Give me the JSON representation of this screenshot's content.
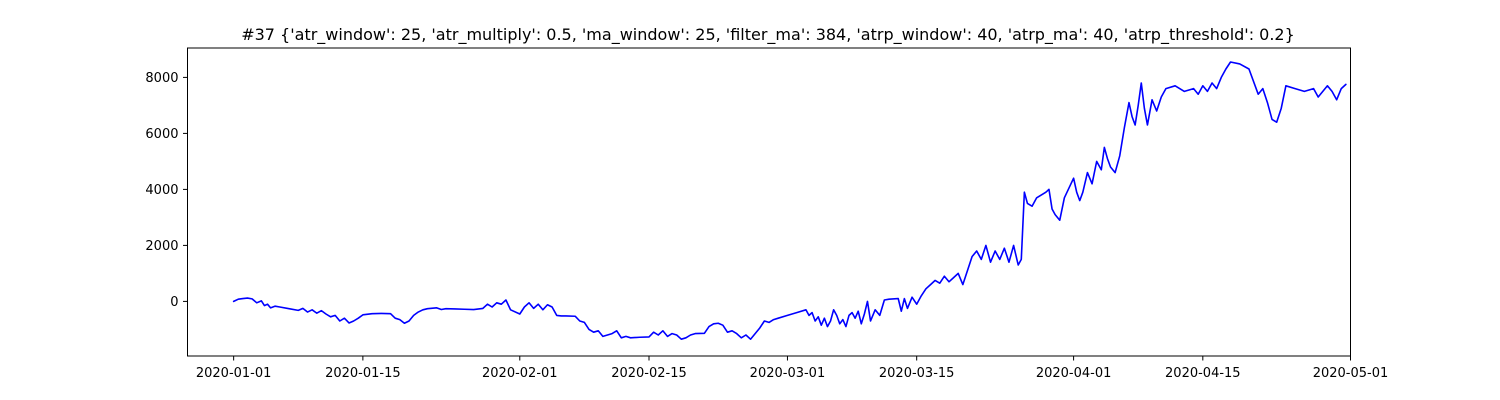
{
  "chart_data": {
    "type": "line",
    "title": "#37 {'atr_window': 25, 'atr_multiply': 0.5, 'ma_window': 25, 'filter_ma': 384, 'atrp_window': 40, 'atrp_ma': 40, 'atrp_threshold': 0.2}",
    "xlabel": "",
    "ylabel": "",
    "x_axis": {
      "type": "date",
      "range": [
        "2019-12-27",
        "2020-05-01"
      ],
      "ticks": [
        {
          "value": "2020-01-01",
          "label": "2020-01-01"
        },
        {
          "value": "2020-01-15",
          "label": "2020-01-15"
        },
        {
          "value": "2020-02-01",
          "label": "2020-02-01"
        },
        {
          "value": "2020-02-15",
          "label": "2020-02-15"
        },
        {
          "value": "2020-03-01",
          "label": "2020-03-01"
        },
        {
          "value": "2020-03-15",
          "label": "2020-03-15"
        },
        {
          "value": "2020-04-01",
          "label": "2020-04-01"
        },
        {
          "value": "2020-04-15",
          "label": "2020-04-15"
        },
        {
          "value": "2020-05-01",
          "label": "2020-05-01"
        }
      ]
    },
    "y_axis": {
      "range": [
        -1950,
        9050
      ],
      "ticks": [
        0,
        2000,
        4000,
        6000,
        8000
      ],
      "tick_labels": [
        "0",
        "2000",
        "4000",
        "6000",
        "8000"
      ]
    },
    "grid": false,
    "legend": "none",
    "series": [
      {
        "color": "#0000ff",
        "points": [
          [
            "2020-01-01",
            0
          ],
          [
            "2020-01-01 12:00",
            80
          ],
          [
            "2020-01-02",
            100
          ],
          [
            "2020-01-02 12:00",
            120
          ],
          [
            "2020-01-03",
            90
          ],
          [
            "2020-01-03 12:00",
            -50
          ],
          [
            "2020-01-04",
            20
          ],
          [
            "2020-01-04 08:00",
            -150
          ],
          [
            "2020-01-04 16:00",
            -100
          ],
          [
            "2020-01-05",
            -230
          ],
          [
            "2020-01-05 12:00",
            -170
          ],
          [
            "2020-01-06",
            -200
          ],
          [
            "2020-01-07",
            -260
          ],
          [
            "2020-01-08",
            -320
          ],
          [
            "2020-01-08 12:00",
            -250
          ],
          [
            "2020-01-09",
            -380
          ],
          [
            "2020-01-09 12:00",
            -300
          ],
          [
            "2020-01-10",
            -420
          ],
          [
            "2020-01-10 12:00",
            -330
          ],
          [
            "2020-01-11",
            -450
          ],
          [
            "2020-01-11 12:00",
            -550
          ],
          [
            "2020-01-12",
            -500
          ],
          [
            "2020-01-12 12:00",
            -700
          ],
          [
            "2020-01-13",
            -600
          ],
          [
            "2020-01-13 12:00",
            -770
          ],
          [
            "2020-01-14",
            -700
          ],
          [
            "2020-01-14 12:00",
            -600
          ],
          [
            "2020-01-15",
            -480
          ],
          [
            "2020-01-16",
            -440
          ],
          [
            "2020-01-17",
            -430
          ],
          [
            "2020-01-18",
            -440
          ],
          [
            "2020-01-18 12:00",
            -600
          ],
          [
            "2020-01-19",
            -650
          ],
          [
            "2020-01-19 12:00",
            -780
          ],
          [
            "2020-01-20",
            -700
          ],
          [
            "2020-01-20 12:00",
            -500
          ],
          [
            "2020-01-21",
            -380
          ],
          [
            "2020-01-21 12:00",
            -300
          ],
          [
            "2020-01-22",
            -260
          ],
          [
            "2020-01-23",
            -230
          ],
          [
            "2020-01-23 12:00",
            -290
          ],
          [
            "2020-01-24",
            -260
          ],
          [
            "2020-01-25",
            -270
          ],
          [
            "2020-01-26",
            -280
          ],
          [
            "2020-01-27",
            -290
          ],
          [
            "2020-01-28",
            -250
          ],
          [
            "2020-01-28 12:00",
            -100
          ],
          [
            "2020-01-29",
            -200
          ],
          [
            "2020-01-29 12:00",
            -50
          ],
          [
            "2020-01-30",
            -100
          ],
          [
            "2020-01-30 12:00",
            50
          ],
          [
            "2020-01-31",
            -300
          ],
          [
            "2020-02-01",
            -450
          ],
          [
            "2020-02-01 12:00",
            -200
          ],
          [
            "2020-02-02",
            -50
          ],
          [
            "2020-02-02 12:00",
            -250
          ],
          [
            "2020-02-03",
            -100
          ],
          [
            "2020-02-03 12:00",
            -300
          ],
          [
            "2020-02-04",
            -120
          ],
          [
            "2020-02-04 12:00",
            -200
          ],
          [
            "2020-02-05",
            -500
          ],
          [
            "2020-02-05 12:00",
            -520
          ],
          [
            "2020-02-06",
            -520
          ],
          [
            "2020-02-07",
            -530
          ],
          [
            "2020-02-07 12:00",
            -700
          ],
          [
            "2020-02-08",
            -750
          ],
          [
            "2020-02-08 12:00",
            -1000
          ],
          [
            "2020-02-09",
            -1100
          ],
          [
            "2020-02-09 12:00",
            -1050
          ],
          [
            "2020-02-10",
            -1250
          ],
          [
            "2020-02-10 12:00",
            -1200
          ],
          [
            "2020-02-11",
            -1150
          ],
          [
            "2020-02-11 12:00",
            -1050
          ],
          [
            "2020-02-12",
            -1300
          ],
          [
            "2020-02-12 12:00",
            -1250
          ],
          [
            "2020-02-13",
            -1300
          ],
          [
            "2020-02-14",
            -1280
          ],
          [
            "2020-02-15",
            -1270
          ],
          [
            "2020-02-15 12:00",
            -1100
          ],
          [
            "2020-02-16",
            -1200
          ],
          [
            "2020-02-16 12:00",
            -1050
          ],
          [
            "2020-02-17",
            -1250
          ],
          [
            "2020-02-17 12:00",
            -1150
          ],
          [
            "2020-02-18",
            -1200
          ],
          [
            "2020-02-18 12:00",
            -1350
          ],
          [
            "2020-02-19",
            -1300
          ],
          [
            "2020-02-19 12:00",
            -1200
          ],
          [
            "2020-02-20",
            -1150
          ],
          [
            "2020-02-21",
            -1140
          ],
          [
            "2020-02-21 12:00",
            -900
          ],
          [
            "2020-02-22",
            -800
          ],
          [
            "2020-02-22 12:00",
            -780
          ],
          [
            "2020-02-23",
            -850
          ],
          [
            "2020-02-23 12:00",
            -1100
          ],
          [
            "2020-02-24",
            -1050
          ],
          [
            "2020-02-24 12:00",
            -1150
          ],
          [
            "2020-02-25",
            -1300
          ],
          [
            "2020-02-25 12:00",
            -1200
          ],
          [
            "2020-02-26",
            -1350
          ],
          [
            "2020-02-26 12:00",
            -1150
          ],
          [
            "2020-02-27",
            -950
          ],
          [
            "2020-02-27 12:00",
            -700
          ],
          [
            "2020-02-28",
            -750
          ],
          [
            "2020-02-28 12:00",
            -650
          ],
          [
            "2020-02-29",
            -600
          ],
          [
            "2020-03-01",
            -500
          ],
          [
            "2020-03-02",
            -400
          ],
          [
            "2020-03-03",
            -300
          ],
          [
            "2020-03-03 08:00",
            -500
          ],
          [
            "2020-03-03 16:00",
            -400
          ],
          [
            "2020-03-04",
            -700
          ],
          [
            "2020-03-04 08:00",
            -550
          ],
          [
            "2020-03-04 16:00",
            -850
          ],
          [
            "2020-03-05",
            -600
          ],
          [
            "2020-03-05 08:00",
            -900
          ],
          [
            "2020-03-05 16:00",
            -700
          ],
          [
            "2020-03-06",
            -300
          ],
          [
            "2020-03-06 08:00",
            -500
          ],
          [
            "2020-03-06 16:00",
            -800
          ],
          [
            "2020-03-07",
            -650
          ],
          [
            "2020-03-07 08:00",
            -900
          ],
          [
            "2020-03-07 16:00",
            -500
          ],
          [
            "2020-03-08",
            -400
          ],
          [
            "2020-03-08 08:00",
            -600
          ],
          [
            "2020-03-08 16:00",
            -350
          ],
          [
            "2020-03-09",
            -800
          ],
          [
            "2020-03-09 08:00",
            -450
          ],
          [
            "2020-03-09 16:00",
            0
          ],
          [
            "2020-03-10",
            -700
          ],
          [
            "2020-03-10 12:00",
            -300
          ],
          [
            "2020-03-11",
            -500
          ],
          [
            "2020-03-11 12:00",
            50
          ],
          [
            "2020-03-12",
            80
          ],
          [
            "2020-03-13",
            100
          ],
          [
            "2020-03-13 08:00",
            -350
          ],
          [
            "2020-03-13 16:00",
            100
          ],
          [
            "2020-03-14",
            -250
          ],
          [
            "2020-03-14 12:00",
            150
          ],
          [
            "2020-03-15",
            -100
          ],
          [
            "2020-03-15 12:00",
            200
          ],
          [
            "2020-03-16",
            450
          ],
          [
            "2020-03-16 12:00",
            600
          ],
          [
            "2020-03-17",
            750
          ],
          [
            "2020-03-17 12:00",
            650
          ],
          [
            "2020-03-18",
            900
          ],
          [
            "2020-03-18 12:00",
            700
          ],
          [
            "2020-03-19",
            850
          ],
          [
            "2020-03-19 12:00",
            1000
          ],
          [
            "2020-03-20",
            600
          ],
          [
            "2020-03-20 12:00",
            1100
          ],
          [
            "2020-03-21",
            1600
          ],
          [
            "2020-03-21 12:00",
            1800
          ],
          [
            "2020-03-22",
            1500
          ],
          [
            "2020-03-22 12:00",
            2000
          ],
          [
            "2020-03-23",
            1400
          ],
          [
            "2020-03-23 12:00",
            1800
          ],
          [
            "2020-03-24",
            1500
          ],
          [
            "2020-03-24 12:00",
            1900
          ],
          [
            "2020-03-25",
            1400
          ],
          [
            "2020-03-25 12:00",
            2000
          ],
          [
            "2020-03-26",
            1300
          ],
          [
            "2020-03-26 08:00",
            1500
          ],
          [
            "2020-03-26 16:00",
            3900
          ],
          [
            "2020-03-27",
            3500
          ],
          [
            "2020-03-27 12:00",
            3400
          ],
          [
            "2020-03-28",
            3700
          ],
          [
            "2020-03-29",
            3900
          ],
          [
            "2020-03-29 08:00",
            4000
          ],
          [
            "2020-03-29 16:00",
            3300
          ],
          [
            "2020-03-30",
            3100
          ],
          [
            "2020-03-30 12:00",
            2900
          ],
          [
            "2020-03-31",
            3700
          ],
          [
            "2020-04-01",
            4400
          ],
          [
            "2020-04-01 08:00",
            3900
          ],
          [
            "2020-04-01 16:00",
            3600
          ],
          [
            "2020-04-02",
            3900
          ],
          [
            "2020-04-02 12:00",
            4600
          ],
          [
            "2020-04-03",
            4200
          ],
          [
            "2020-04-03 12:00",
            5000
          ],
          [
            "2020-04-04",
            4700
          ],
          [
            "2020-04-04 08:00",
            5500
          ],
          [
            "2020-04-04 16:00",
            5100
          ],
          [
            "2020-04-05",
            4800
          ],
          [
            "2020-04-05 12:00",
            4600
          ],
          [
            "2020-04-06",
            5200
          ],
          [
            "2020-04-06 12:00",
            6200
          ],
          [
            "2020-04-07",
            7100
          ],
          [
            "2020-04-07 08:00",
            6600
          ],
          [
            "2020-04-07 16:00",
            6300
          ],
          [
            "2020-04-08",
            7000
          ],
          [
            "2020-04-08 08:00",
            7800
          ],
          [
            "2020-04-08 16:00",
            6900
          ],
          [
            "2020-04-09",
            6300
          ],
          [
            "2020-04-09 12:00",
            7200
          ],
          [
            "2020-04-10",
            6800
          ],
          [
            "2020-04-10 12:00",
            7300
          ],
          [
            "2020-04-11",
            7600
          ],
          [
            "2020-04-12",
            7700
          ],
          [
            "2020-04-13",
            7500
          ],
          [
            "2020-04-14",
            7600
          ],
          [
            "2020-04-14 12:00",
            7400
          ],
          [
            "2020-04-15",
            7700
          ],
          [
            "2020-04-15 12:00",
            7500
          ],
          [
            "2020-04-16",
            7800
          ],
          [
            "2020-04-16 12:00",
            7600
          ],
          [
            "2020-04-17",
            8000
          ],
          [
            "2020-04-17 12:00",
            8300
          ],
          [
            "2020-04-18",
            8550
          ],
          [
            "2020-04-19",
            8480
          ],
          [
            "2020-04-20",
            8300
          ],
          [
            "2020-04-21",
            7400
          ],
          [
            "2020-04-21 12:00",
            7600
          ],
          [
            "2020-04-22",
            7100
          ],
          [
            "2020-04-22 12:00",
            6500
          ],
          [
            "2020-04-23",
            6400
          ],
          [
            "2020-04-23 12:00",
            6900
          ],
          [
            "2020-04-24",
            7700
          ],
          [
            "2020-04-25",
            7600
          ],
          [
            "2020-04-26",
            7500
          ],
          [
            "2020-04-27",
            7600
          ],
          [
            "2020-04-27 12:00",
            7300
          ],
          [
            "2020-04-28",
            7500
          ],
          [
            "2020-04-28 12:00",
            7700
          ],
          [
            "2020-04-29",
            7500
          ],
          [
            "2020-04-29 12:00",
            7200
          ],
          [
            "2020-04-30",
            7600
          ],
          [
            "2020-04-30 12:00",
            7750
          ]
        ]
      }
    ]
  }
}
